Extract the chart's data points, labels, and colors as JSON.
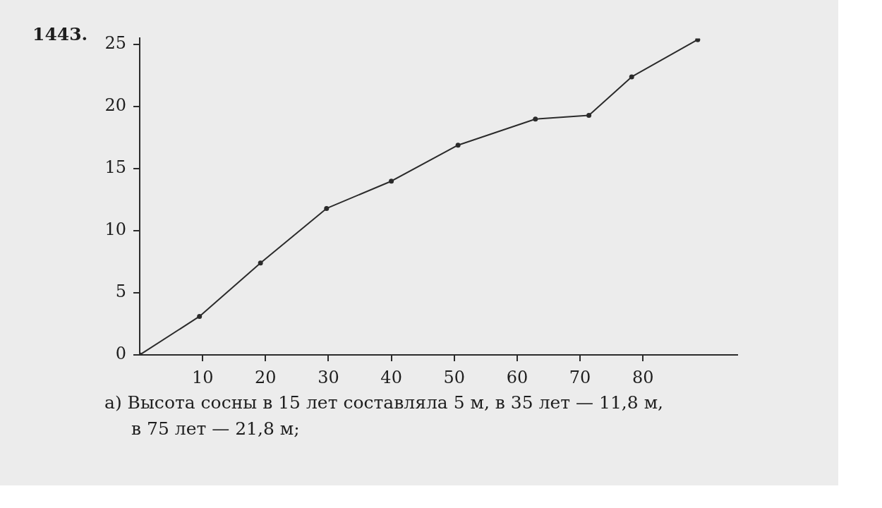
{
  "chart_data": {
    "type": "line",
    "title": "1443.",
    "annotations": [
      "а) Высота сосны в 15 лет составляла 5 м, в 35 лет — 11,8 м, в 75 лет — 21,8 м;"
    ],
    "x": [
      0,
      9.5,
      19.2,
      29.7,
      40,
      50.6,
      62.9,
      71.4,
      78.2,
      88.7
    ],
    "series": [
      {
        "color": "#2b2b2b",
        "values": [
          0,
          3.1,
          7.4,
          11.8,
          14.0,
          16.9,
          19.0,
          19.3,
          22.4,
          25.4
        ]
      }
    ],
    "xlim": [
      0,
      95
    ],
    "xticks": [
      10,
      20,
      30,
      40,
      50,
      60,
      70,
      80
    ],
    "ylim": [
      0,
      25.5
    ],
    "yticks": [
      0,
      5,
      10,
      15,
      20,
      25
    ],
    "marker": "circle",
    "line_style": "solid"
  }
}
